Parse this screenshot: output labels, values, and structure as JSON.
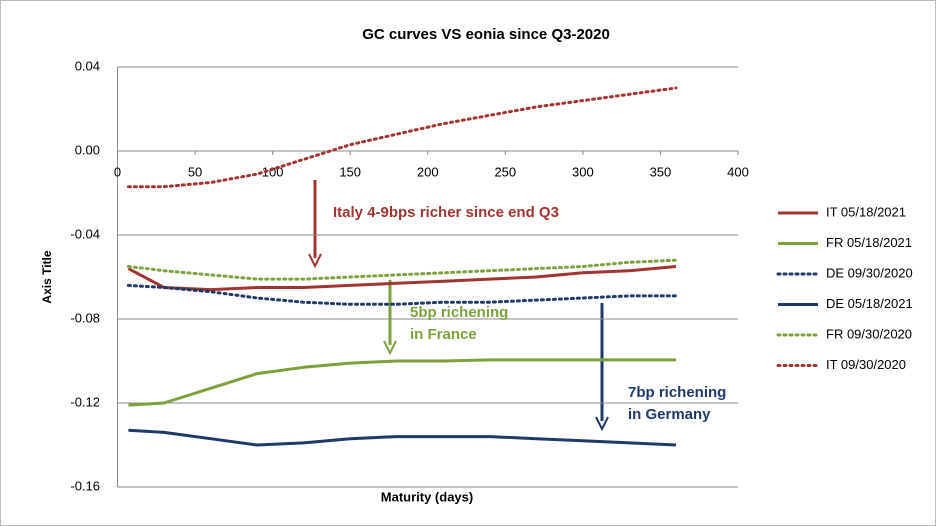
{
  "chart_data": {
    "type": "line",
    "title": "GC curves VS eonia since Q3-2020",
    "x_label": "Maturity (days)",
    "y_label": "Axis Title",
    "x": [
      7,
      30,
      60,
      90,
      120,
      150,
      180,
      210,
      240,
      270,
      300,
      330,
      360
    ],
    "series": [
      {
        "name": "IT 05/18/2021",
        "color": "#a03532",
        "dash": false,
        "values": [
          -0.056,
          -0.065,
          -0.066,
          -0.065,
          -0.065,
          -0.064,
          -0.063,
          -0.062,
          -0.061,
          -0.06,
          -0.058,
          -0.057,
          -0.055
        ]
      },
      {
        "name": "FR 05/18/2021",
        "color": "#7da23c",
        "dash": false,
        "values": [
          -0.121,
          -0.12,
          -0.113,
          -0.106,
          -0.103,
          -0.101,
          -0.1,
          -0.1,
          -0.0995,
          -0.0995,
          -0.0995,
          -0.0995,
          -0.0995
        ]
      },
      {
        "name": "DE 09/30/2020",
        "color": "#1f3a68",
        "dash": true,
        "values": [
          -0.064,
          -0.065,
          -0.067,
          -0.07,
          -0.072,
          -0.073,
          -0.073,
          -0.072,
          -0.072,
          -0.071,
          -0.07,
          -0.069,
          -0.069
        ]
      },
      {
        "name": "DE 05/18/2021",
        "color": "#1f3a68",
        "dash": false,
        "values": [
          -0.133,
          -0.134,
          -0.137,
          -0.14,
          -0.139,
          -0.137,
          -0.136,
          -0.136,
          -0.136,
          -0.137,
          -0.138,
          -0.139,
          -0.14
        ]
      },
      {
        "name": "FR 09/30/2020",
        "color": "#7da23c",
        "dash": true,
        "values": [
          -0.055,
          -0.057,
          -0.059,
          -0.061,
          -0.061,
          -0.06,
          -0.059,
          -0.058,
          -0.057,
          -0.056,
          -0.055,
          -0.053,
          -0.052
        ]
      },
      {
        "name": "IT 09/30/2020",
        "color": "#a03532",
        "dash": true,
        "values": [
          -0.017,
          -0.017,
          -0.015,
          -0.011,
          -0.004,
          0.003,
          0.008,
          0.013,
          0.017,
          0.021,
          0.024,
          0.027,
          0.03
        ]
      }
    ],
    "xlim": [
      0,
      400
    ],
    "xticks": [
      0,
      50,
      100,
      150,
      200,
      250,
      300,
      350,
      400
    ],
    "ylim": [
      -0.16,
      0.04
    ],
    "yticks": [
      {
        "value": -0.16,
        "label": "-0.16"
      },
      {
        "value": -0.12,
        "label": "-0.12"
      },
      {
        "value": -0.08,
        "label": "-0.08"
      },
      {
        "value": -0.04,
        "label": "-0.04"
      },
      {
        "value": 0,
        "label": "0.00"
      },
      {
        "value": 0.04,
        "label": "0.04"
      }
    ],
    "grid": true,
    "legend": "right",
    "annotations": [
      {
        "lines": [
          "Italy 4-9bps richer since end Q3"
        ],
        "color": "#a03532"
      },
      {
        "lines": [
          "5bp richening",
          "in France"
        ],
        "color": "#7da23c"
      },
      {
        "lines": [
          "7bp richening",
          "in Germany"
        ],
        "color": "#1f3a68"
      }
    ]
  }
}
